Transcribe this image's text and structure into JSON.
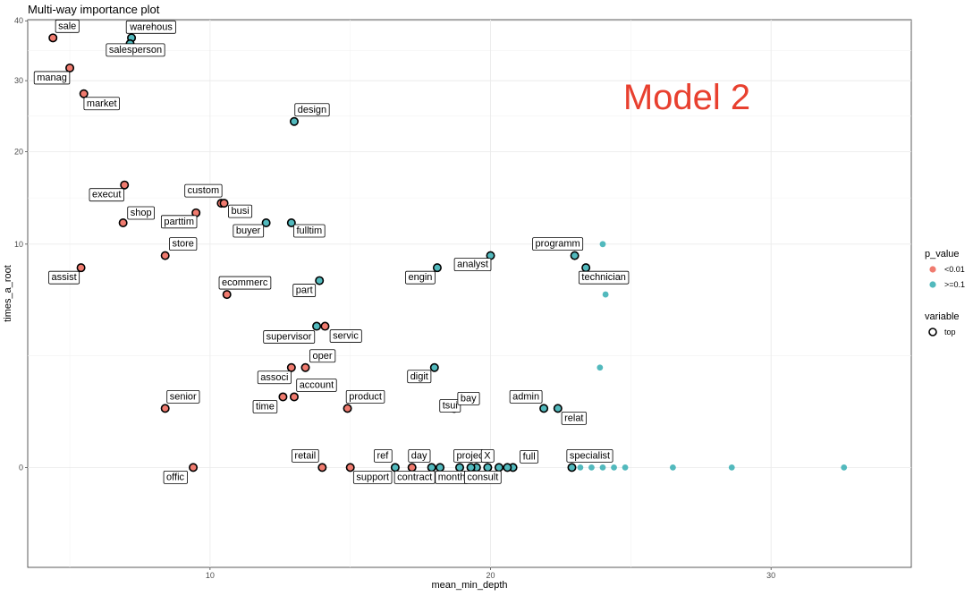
{
  "chart_data": {
    "type": "scatter",
    "title": "Multi-way importance plot",
    "xlabel": "mean_min_depth",
    "ylabel": "times_a_root",
    "xlim": [
      3.5,
      35
    ],
    "ylim": [
      -2,
      40.2
    ],
    "x_ticks": [
      10,
      20,
      30
    ],
    "y_ticks": [
      0,
      10,
      20,
      30,
      40
    ],
    "y_transform": "sqrt",
    "grid": true,
    "annotation": "Model 2",
    "colors": {
      "<0.01": "#f07b6f",
      ">=0.1": "#52b9bd"
    },
    "legend": {
      "position": "right",
      "p_value_title": "p_value",
      "p_value_items": [
        "<0.01",
        ">=0.1"
      ],
      "variable_title": "variable",
      "variable_items": [
        "top"
      ]
    },
    "points": [
      {
        "label": "sale",
        "x": 4.4,
        "y": 37,
        "p": "<0.01",
        "top": true
      },
      {
        "label": "warehous",
        "x": 7.2,
        "y": 37,
        "p": ">=0.1",
        "top": true
      },
      {
        "label": "salesperson",
        "x": 7.15,
        "y": 36,
        "p": ">=0.1",
        "top": true
      },
      {
        "label": "manag",
        "x": 5.0,
        "y": 32,
        "p": "<0.01",
        "top": true
      },
      {
        "label": "market",
        "x": 5.5,
        "y": 28,
        "p": "<0.01",
        "top": true
      },
      {
        "label": "design",
        "x": 13.0,
        "y": 24,
        "p": ">=0.1",
        "top": true
      },
      {
        "label": "execut",
        "x": 6.95,
        "y": 16,
        "p": "<0.01",
        "top": true
      },
      {
        "label": "custom",
        "x": 10.4,
        "y": 14,
        "p": "<0.01",
        "top": true
      },
      {
        "label": "busi",
        "x": 10.5,
        "y": 14,
        "p": "<0.01",
        "top": true
      },
      {
        "label": "shop",
        "x": 6.9,
        "y": 12,
        "p": "<0.01",
        "top": true
      },
      {
        "label": "parttim",
        "x": 9.5,
        "y": 13,
        "p": "<0.01",
        "top": true
      },
      {
        "label": "buyer",
        "x": 12.0,
        "y": 12,
        "p": ">=0.1",
        "top": true
      },
      {
        "label": "fulltim",
        "x": 12.9,
        "y": 12,
        "p": ">=0.1",
        "top": true
      },
      {
        "label": "store",
        "x": 8.4,
        "y": 9,
        "p": "<0.01",
        "top": true
      },
      {
        "label": "assist",
        "x": 5.4,
        "y": 8,
        "p": "<0.01",
        "top": true
      },
      {
        "label": "ecommerc",
        "x": 10.6,
        "y": 6,
        "p": "<0.01",
        "top": true
      },
      {
        "label": "part",
        "x": 13.9,
        "y": 7,
        "p": ">=0.1",
        "top": true
      },
      {
        "label": "engin",
        "x": 18.1,
        "y": 8,
        "p": ">=0.1",
        "top": true
      },
      {
        "label": "analyst",
        "x": 20.0,
        "y": 9,
        "p": ">=0.1",
        "top": true
      },
      {
        "label": "programm",
        "x": 23.0,
        "y": 9,
        "p": ">=0.1",
        "top": true
      },
      {
        "label": "technician",
        "x": 23.4,
        "y": 8,
        "p": ">=0.1",
        "top": true
      },
      {
        "label": "supervisor",
        "x": 13.8,
        "y": 4,
        "p": ">=0.1",
        "top": true
      },
      {
        "label": "servic",
        "x": 14.1,
        "y": 4,
        "p": "<0.01",
        "top": true
      },
      {
        "label": "oper",
        "x": 13.4,
        "y": 2,
        "p": "<0.01",
        "top": true
      },
      {
        "label": "associ",
        "x": 12.9,
        "y": 2,
        "p": "<0.01",
        "top": true
      },
      {
        "label": "account",
        "x": 13.0,
        "y": 1,
        "p": "<0.01",
        "top": true
      },
      {
        "label": "time",
        "x": 12.6,
        "y": 1,
        "p": "<0.01",
        "top": true
      },
      {
        "label": "digit",
        "x": 18.0,
        "y": 2,
        "p": ">=0.1",
        "top": true
      },
      {
        "label": "tsui",
        "x": 19.1,
        "y": 1,
        "p": ">=0.1",
        "top": true
      },
      {
        "label": "senior",
        "x": 8.4,
        "y": 0.7,
        "p": "<0.01",
        "top": true
      },
      {
        "label": "product",
        "x": 14.9,
        "y": 0.7,
        "p": "<0.01",
        "top": true
      },
      {
        "label": "bay",
        "x": 18.7,
        "y": 0.7,
        "p": ">=0.1",
        "top": true
      },
      {
        "label": "admin",
        "x": 21.9,
        "y": 0.7,
        "p": ">=0.1",
        "top": true
      },
      {
        "label": "relat",
        "x": 22.4,
        "y": 0.7,
        "p": ">=0.1",
        "top": true
      },
      {
        "label": "offic",
        "x": 9.4,
        "y": 0,
        "p": "<0.01",
        "top": true
      },
      {
        "label": "retail",
        "x": 14.0,
        "y": 0,
        "p": "<0.01",
        "top": true
      },
      {
        "label": "support",
        "x": 15.0,
        "y": 0,
        "p": "<0.01",
        "top": true
      },
      {
        "label": "ref",
        "x": 16.6,
        "y": 0,
        "p": ">=0.1",
        "top": true
      },
      {
        "label": "contract",
        "x": 17.2,
        "y": 0,
        "p": "<0.01",
        "top": true
      },
      {
        "label": "day",
        "x": 17.9,
        "y": 0,
        "p": ">=0.1",
        "top": true
      },
      {
        "label": "month",
        "x": 18.2,
        "y": 0,
        "p": ">=0.1",
        "top": true
      },
      {
        "label": "project",
        "x": 18.9,
        "y": 0,
        "p": ">=0.1",
        "top": true
      },
      {
        "label": "consult",
        "x": 19.5,
        "y": 0,
        "p": ">=0.1",
        "top": true
      },
      {
        "label": "X",
        "x": 20.3,
        "y": 0,
        "p": ">=0.1",
        "top": true
      },
      {
        "label": "full",
        "x": 20.8,
        "y": 0,
        "p": ">=0.1",
        "top": true
      },
      {
        "label": "specialist",
        "x": 22.9,
        "y": 0,
        "p": ">=0.1",
        "top": true
      },
      {
        "label": "",
        "x": 19.3,
        "y": 0,
        "p": ">=0.1",
        "top": true
      },
      {
        "label": "",
        "x": 19.9,
        "y": 0,
        "p": ">=0.1",
        "top": true
      },
      {
        "label": "",
        "x": 20.6,
        "y": 0,
        "p": ">=0.1",
        "top": true
      },
      {
        "label": "",
        "x": 24.0,
        "y": 10,
        "p": ">=0.1",
        "top": false
      },
      {
        "label": "",
        "x": 24.1,
        "y": 6,
        "p": ">=0.1",
        "top": false
      },
      {
        "label": "",
        "x": 23.9,
        "y": 2,
        "p": ">=0.1",
        "top": false
      },
      {
        "label": "",
        "x": 23.2,
        "y": 0,
        "p": ">=0.1",
        "top": false
      },
      {
        "label": "",
        "x": 23.6,
        "y": 0,
        "p": ">=0.1",
        "top": false
      },
      {
        "label": "",
        "x": 24.0,
        "y": 0,
        "p": ">=0.1",
        "top": false
      },
      {
        "label": "",
        "x": 24.4,
        "y": 0,
        "p": ">=0.1",
        "top": false
      },
      {
        "label": "",
        "x": 24.8,
        "y": 0,
        "p": ">=0.1",
        "top": false
      },
      {
        "label": "",
        "x": 26.5,
        "y": 0,
        "p": ">=0.1",
        "top": false
      },
      {
        "label": "",
        "x": 28.6,
        "y": 0,
        "p": ">=0.1",
        "top": false
      },
      {
        "label": "",
        "x": 32.6,
        "y": 0,
        "p": ">=0.1",
        "top": false
      }
    ]
  }
}
